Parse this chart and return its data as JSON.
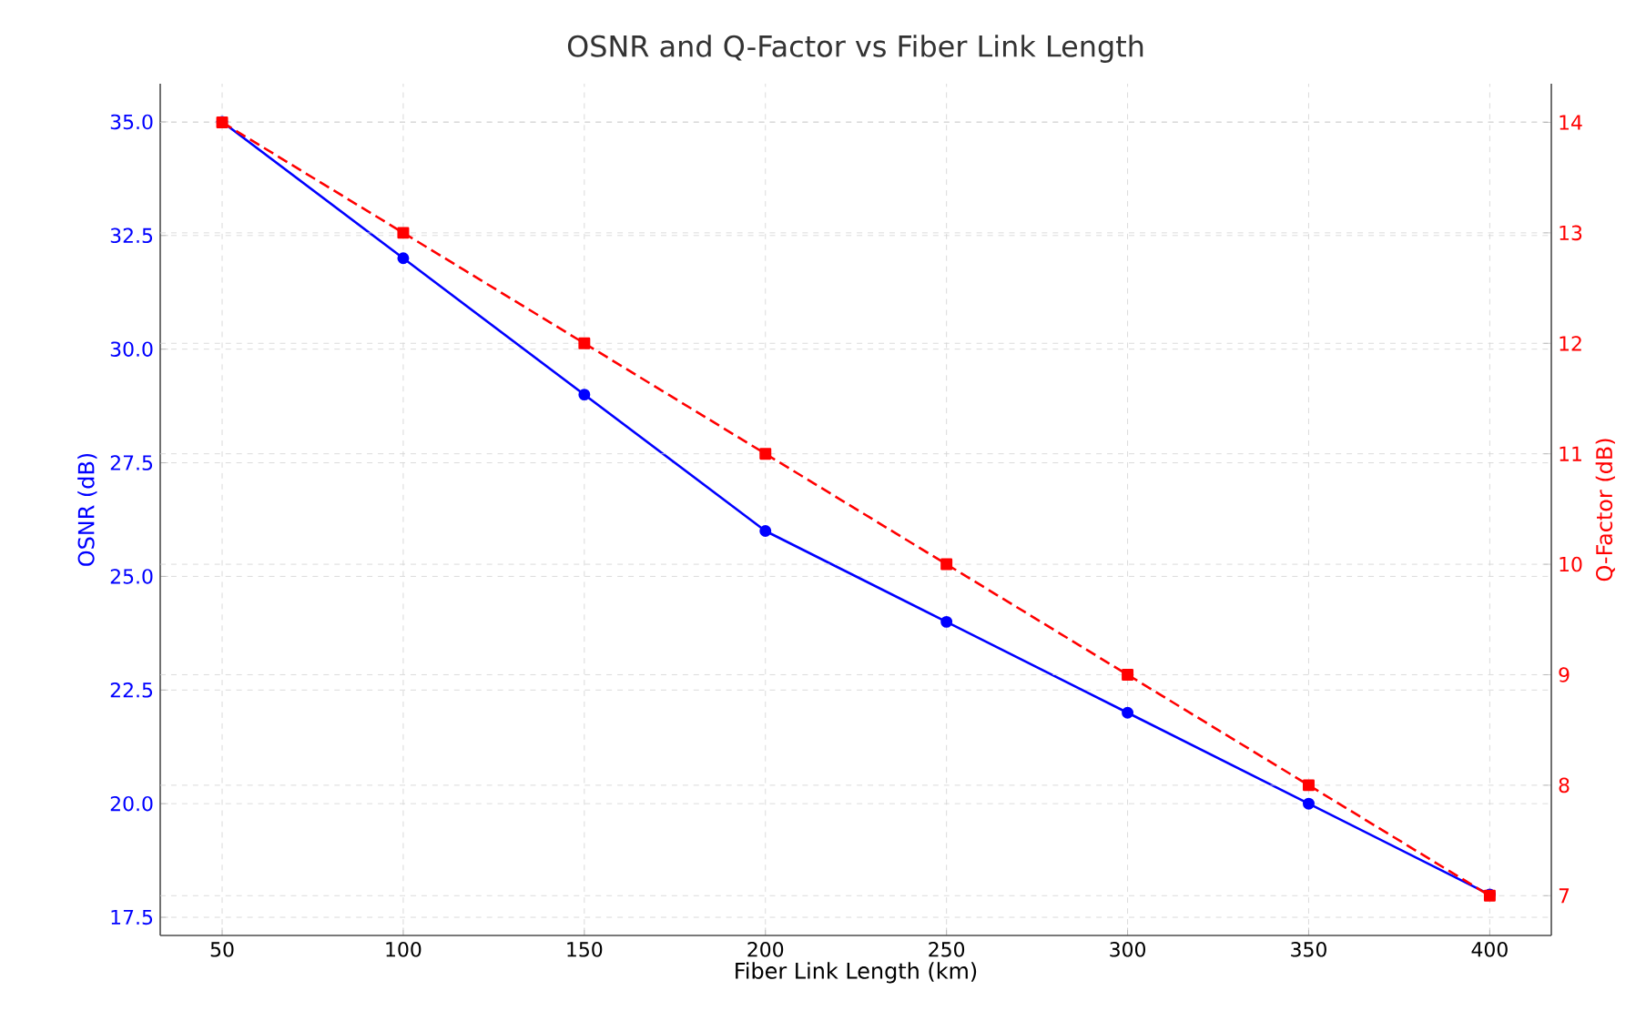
{
  "chart_data": {
    "type": "line",
    "title": "OSNR and Q-Factor vs Fiber Link Length",
    "xlabel": "Fiber Link Length (km)",
    "ylabel": "OSNR (dB)",
    "y2label": "Q-Factor (dB)",
    "x": [
      50,
      100,
      150,
      200,
      250,
      300,
      350,
      400
    ],
    "series": [
      {
        "color": "#0000ff",
        "marker": "circle",
        "line_style": "solid",
        "values": [
          35,
          32,
          29,
          26,
          24,
          22,
          20,
          18
        ]
      },
      {
        "color": "#ff0000",
        "marker": "square",
        "line_style": "dashed",
        "axis": "y2",
        "values": [
          14,
          13,
          12,
          11,
          10,
          9,
          8,
          7
        ]
      }
    ],
    "xlim": [
      32.9,
      417
    ],
    "xticks": [
      50,
      100,
      150,
      200,
      250,
      300,
      350,
      400
    ],
    "ylim": [
      17.1,
      35.84
    ],
    "yticks": [
      {
        "value": 17.5,
        "label": "17.5"
      },
      {
        "value": 20,
        "label": "20.0"
      },
      {
        "value": 22.5,
        "label": "22.5"
      },
      {
        "value": 25,
        "label": "25.0"
      },
      {
        "value": 27.5,
        "label": "27.5"
      },
      {
        "value": 30,
        "label": "30.0"
      },
      {
        "value": 32.5,
        "label": "32.5"
      },
      {
        "value": 35,
        "label": "35.0"
      }
    ],
    "y2lim": [
      6.64,
      14.35
    ],
    "y2ticks": [
      7,
      8,
      9,
      10,
      11,
      12,
      13,
      14
    ],
    "grid": true
  }
}
